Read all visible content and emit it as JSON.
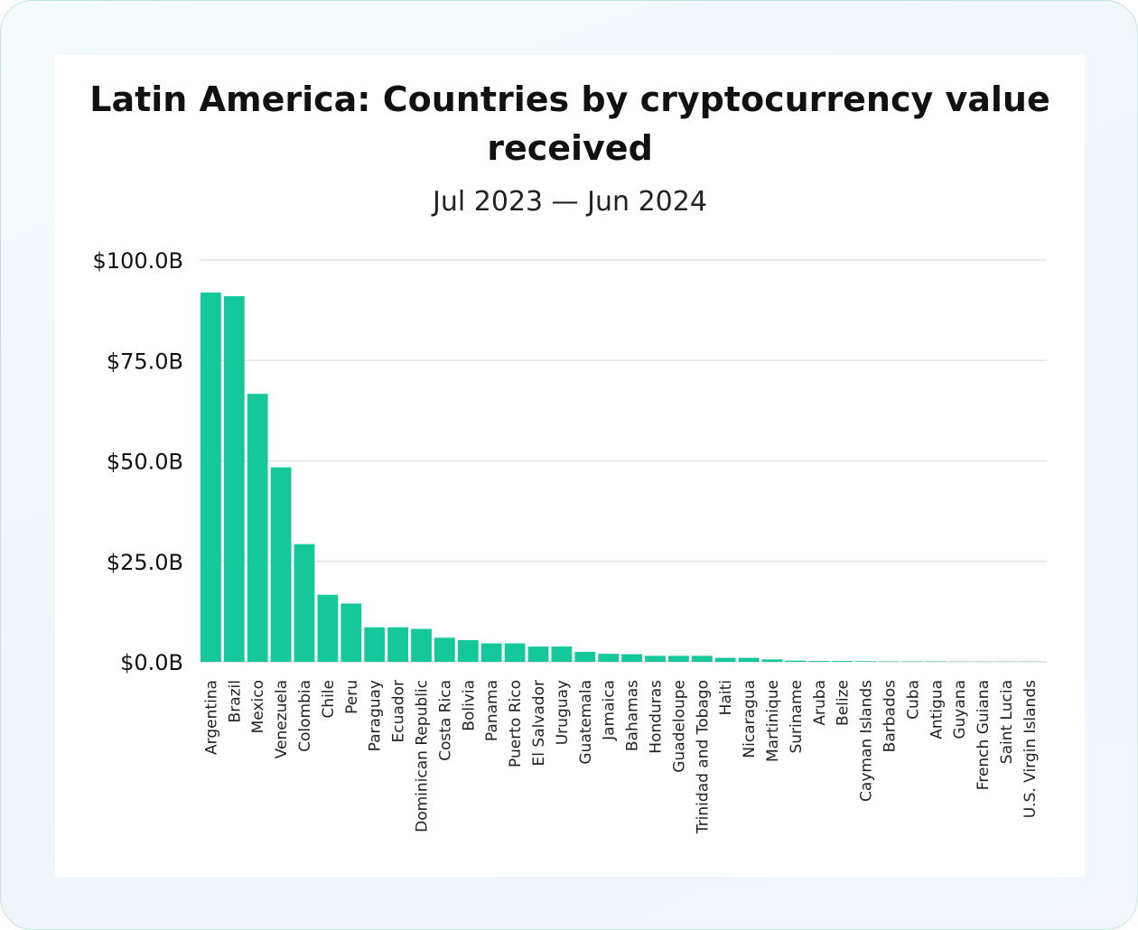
{
  "chart_data": {
    "type": "bar",
    "title": "Latin America: Countries by cryptocurrency value received",
    "subtitle": "Jul 2023 — Jun 2024",
    "xlabel": "",
    "ylabel": "",
    "ylim": [
      0,
      100
    ],
    "y_ticks": [
      0,
      25,
      50,
      75,
      100
    ],
    "y_tick_labels": [
      "$0.0B",
      "$25.0B",
      "$50.0B",
      "$75.0B",
      "$100.0B"
    ],
    "grid": true,
    "bar_color": "#14c89c",
    "grid_color": "#e4e4e4",
    "categories": [
      "Argentina",
      "Brazil",
      "Mexico",
      "Venezuela",
      "Colombia",
      "Chile",
      "Peru",
      "Paraguay",
      "Ecuador",
      "Dominican Republic",
      "Costa Rica",
      "Bolivia",
      "Panama",
      "Puerto Rico",
      "El Salvador",
      "Uruguay",
      "Guatemala",
      "Jamaica",
      "Bahamas",
      "Honduras",
      "Guadeloupe",
      "Trinidad and Tobago",
      "Haiti",
      "Nicaragua",
      "Martinique",
      "Suriname",
      "Aruba",
      "Belize",
      "Cayman Islands",
      "Barbados",
      "Cuba",
      "Antigua",
      "Guyana",
      "French Guiana",
      "Saint Lucia",
      "U.S. Virgin Islands"
    ],
    "values": [
      91.9,
      91.0,
      66.7,
      48.4,
      29.3,
      16.7,
      14.5,
      8.6,
      8.6,
      8.2,
      6.0,
      5.4,
      4.6,
      4.6,
      3.8,
      3.8,
      2.5,
      2.0,
      1.9,
      1.5,
      1.5,
      1.5,
      1.0,
      1.0,
      0.6,
      0.3,
      0.2,
      0.2,
      0.15,
      0.1,
      0.1,
      0.1,
      0.05,
      0.05,
      0.05,
      0.05
    ]
  }
}
